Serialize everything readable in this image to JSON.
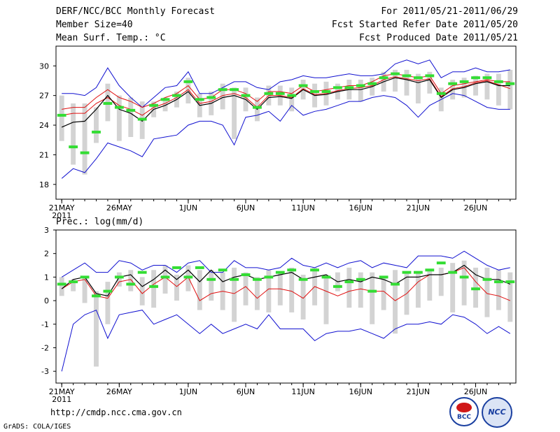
{
  "header": {
    "title": "DERF/NCC/BCC Monthly Forecast",
    "member": "Member Size=40",
    "variable": "Mean Surf. Temp.: °C",
    "period": "For 2011/05/21-2011/06/29",
    "start": "Fcst Started Refer Date 2011/05/20",
    "produced": "Fcst Produced Date 2011/05/21"
  },
  "precip_label": "Prec.: log(mm/d)",
  "footer": {
    "url": "http://cmdp.ncc.cma.gov.cn",
    "credit": "GrADS: COLA/IGES",
    "logo1": "BCC",
    "logo2": "NCC"
  },
  "colors": {
    "range": "#1010d0",
    "mean": "#000000",
    "climo": "#e01010",
    "median": "#33dd33",
    "box": "#d3d3d3"
  },
  "chart_data": [
    {
      "type": "line",
      "title": "Mean Surf. Temp.: °C",
      "ylim": [
        16.5,
        32
      ],
      "yticks": [
        18,
        21,
        24,
        27,
        30
      ],
      "x_tick_labels": [
        "21MAY",
        "26MAY",
        "1JUN",
        "6JUN",
        "11JUN",
        "16JUN",
        "21JUN",
        "26JUN"
      ],
      "x_tick_days": [
        0,
        5,
        11,
        16,
        21,
        26,
        31,
        36
      ],
      "year_label": "2011",
      "days": 40,
      "max": [
        27.2,
        27.2,
        27.0,
        27.8,
        29.8,
        28.0,
        26.8,
        25.8,
        26.8,
        27.8,
        28.0,
        29.4,
        27.2,
        27.2,
        27.8,
        28.4,
        28.4,
        27.8,
        27.6,
        28.4,
        28.6,
        29.0,
        28.8,
        28.8,
        29.0,
        29.2,
        29.0,
        29.0,
        29.2,
        30.2,
        30.6,
        30.2,
        30.6,
        28.8,
        29.4,
        29.4,
        29.8,
        29.4,
        29.4,
        29.6
      ],
      "min": [
        18.6,
        19.6,
        19.2,
        20.6,
        22.2,
        21.8,
        21.4,
        20.8,
        22.6,
        22.8,
        23.0,
        24.0,
        24.4,
        24.4,
        24.0,
        22.0,
        24.8,
        25.0,
        25.4,
        24.4,
        26.0,
        25.0,
        25.4,
        25.6,
        26.0,
        26.4,
        26.4,
        26.8,
        27.0,
        26.8,
        26.0,
        24.8,
        26.0,
        26.6,
        27.2,
        27.0,
        26.4,
        25.8,
        25.6,
        25.6
      ],
      "mean": [
        23.8,
        24.3,
        24.4,
        25.6,
        27.0,
        25.6,
        25.2,
        24.4,
        25.6,
        26.0,
        26.6,
        27.4,
        26.0,
        26.2,
        26.8,
        27.0,
        26.6,
        25.6,
        26.8,
        26.9,
        26.7,
        27.6,
        27.0,
        27.1,
        27.4,
        27.6,
        27.6,
        27.9,
        28.4,
        28.8,
        28.6,
        28.3,
        28.6,
        26.8,
        27.6,
        27.8,
        28.2,
        28.4,
        28.0,
        28.0
      ],
      "climo": [
        25.6,
        25.8,
        25.8,
        26.8,
        27.6,
        26.8,
        26.4,
        25.8,
        26.2,
        26.8,
        27.2,
        28.0,
        26.6,
        26.8,
        27.6,
        27.6,
        27.2,
        26.4,
        27.4,
        27.4,
        27.2,
        28.0,
        27.4,
        27.6,
        27.8,
        28.0,
        28.0,
        28.4,
        29.0,
        29.2,
        29.0,
        28.8,
        29.0,
        27.2,
        28.0,
        28.2,
        28.4,
        28.6,
        28.4,
        28.4
      ],
      "climo2": [
        25.0,
        25.2,
        25.2,
        26.2,
        26.8,
        26.0,
        25.6,
        25.0,
        25.8,
        26.2,
        26.8,
        27.6,
        26.2,
        26.4,
        27.0,
        27.2,
        26.8,
        25.8,
        27.0,
        27.0,
        26.8,
        27.7,
        27.1,
        27.2,
        27.5,
        27.7,
        27.8,
        28.0,
        28.6,
        28.9,
        28.7,
        28.5,
        28.7,
        26.9,
        27.7,
        27.9,
        28.3,
        28.5,
        28.1,
        27.7
      ],
      "box_high": [
        27.0,
        26.2,
        26.2,
        25.8,
        28.2,
        27.0,
        26.8,
        26.4,
        26.4,
        26.8,
        27.4,
        28.8,
        27.2,
        27.4,
        28.2,
        27.8,
        27.8,
        26.8,
        28.0,
        28.0,
        27.8,
        28.6,
        28.2,
        28.4,
        28.2,
        28.6,
        28.6,
        28.8,
        29.4,
        29.6,
        29.6,
        29.2,
        29.4,
        27.8,
        28.6,
        28.8,
        29.0,
        29.2,
        29.2,
        29.6
      ],
      "box_low": [
        22.4,
        20.0,
        19.0,
        22.2,
        24.4,
        22.4,
        22.8,
        22.6,
        24.8,
        25.4,
        25.8,
        26.2,
        24.8,
        25.0,
        25.6,
        22.6,
        25.4,
        24.4,
        26.0,
        26.0,
        25.4,
        26.6,
        25.8,
        26.0,
        26.6,
        26.6,
        26.4,
        27.0,
        27.4,
        27.4,
        27.0,
        26.2,
        27.2,
        25.4,
        26.6,
        26.8,
        27.0,
        26.6,
        26.0,
        25.6
      ],
      "median": [
        25.0,
        21.8,
        21.2,
        23.3,
        26.2,
        25.8,
        25.5,
        24.6,
        26.0,
        26.6,
        27.0,
        28.4,
        26.6,
        26.8,
        27.6,
        27.6,
        27.0,
        25.8,
        27.2,
        27.2,
        27.0,
        28.0,
        27.4,
        27.4,
        27.8,
        27.8,
        28.0,
        28.2,
        28.8,
        29.2,
        29.0,
        28.8,
        29.0,
        27.2,
        28.2,
        28.4,
        28.8,
        28.8,
        28.4,
        28.2
      ]
    },
    {
      "type": "line",
      "title": "Prec.: log(mm/d)",
      "ylim": [
        -3.5,
        3
      ],
      "yticks": [
        -3,
        -2,
        -1,
        0,
        1,
        2,
        3
      ],
      "x_tick_labels": [
        "21MAY",
        "26MAY",
        "1JUN",
        "6JUN",
        "11JUN",
        "16JUN",
        "21JUN",
        "26JUN"
      ],
      "x_tick_days": [
        0,
        5,
        11,
        16,
        21,
        26,
        31,
        36
      ],
      "year_label": "2011",
      "days": 40,
      "max": [
        1.0,
        1.3,
        1.6,
        1.2,
        1.2,
        1.7,
        1.6,
        1.3,
        1.5,
        1.5,
        1.2,
        1.6,
        1.7,
        1.2,
        1.2,
        1.7,
        1.4,
        1.4,
        1.3,
        1.4,
        1.8,
        1.5,
        1.4,
        1.6,
        1.4,
        1.6,
        1.7,
        1.4,
        1.6,
        1.5,
        1.4,
        1.9,
        1.9,
        1.9,
        1.8,
        2.1,
        1.8,
        1.5,
        1.3,
        1.4
      ],
      "min": [
        -3.0,
        -1.0,
        -0.6,
        -0.4,
        -1.6,
        -0.6,
        -0.5,
        -0.4,
        -1.0,
        -0.8,
        -0.6,
        -1.0,
        -1.4,
        -1.0,
        -1.4,
        -1.2,
        -1.0,
        -1.2,
        -0.6,
        -1.2,
        -1.2,
        -1.2,
        -1.7,
        -1.4,
        -1.3,
        -1.3,
        -1.2,
        -1.4,
        -1.6,
        -1.2,
        -1.0,
        -1.0,
        -0.9,
        -1.0,
        -0.6,
        -0.7,
        -1.0,
        -1.4,
        -1.1,
        -1.4
      ],
      "mean": [
        0.5,
        0.9,
        1.0,
        0.3,
        0.2,
        1.0,
        1.1,
        0.6,
        0.9,
        1.3,
        0.9,
        1.3,
        0.8,
        1.3,
        0.8,
        1.0,
        1.1,
        0.9,
        1.0,
        1.1,
        1.2,
        0.9,
        1.0,
        1.1,
        0.8,
        0.9,
        0.8,
        1.0,
        0.9,
        0.7,
        1.0,
        1.0,
        1.1,
        1.1,
        1.2,
        1.5,
        1.1,
        0.9,
        0.9,
        0.7
      ],
      "climo": [
        0.5,
        0.8,
        0.9,
        0.2,
        0.1,
        0.8,
        0.9,
        0.3,
        0.7,
        1.0,
        0.6,
        1.0,
        0.0,
        0.3,
        0.4,
        0.3,
        0.6,
        0.1,
        0.5,
        0.5,
        0.4,
        0.1,
        0.6,
        0.4,
        0.2,
        0.4,
        0.5,
        0.4,
        0.4,
        0.0,
        0.3,
        0.8,
        1.1,
        1.1,
        1.2,
        1.4,
        0.8,
        0.3,
        0.2,
        0.0
      ],
      "box_high": [
        1.0,
        0.9,
        1.0,
        0.4,
        0.8,
        1.2,
        1.3,
        1.0,
        1.3,
        1.5,
        1.1,
        1.5,
        1.3,
        1.3,
        1.2,
        1.4,
        1.2,
        1.0,
        1.3,
        1.2,
        1.4,
        1.1,
        1.4,
        1.1,
        1.2,
        1.4,
        1.2,
        1.2,
        1.0,
        1.3,
        1.2,
        1.2,
        1.3,
        1.4,
        1.6,
        1.7,
        1.4,
        1.4,
        1.3,
        1.2
      ],
      "box_low": [
        0.2,
        0.4,
        -0.1,
        -2.8,
        -1.0,
        0.6,
        0.4,
        -0.2,
        -0.3,
        0.3,
        0.0,
        0.4,
        -0.4,
        0.0,
        -0.4,
        -0.9,
        -0.2,
        -0.4,
        -0.5,
        -0.2,
        -0.5,
        -0.8,
        -0.2,
        -1.0,
        0.4,
        -0.3,
        -0.3,
        -1.0,
        -0.4,
        -1.4,
        -0.6,
        -0.3,
        0.0,
        0.2,
        -0.5,
        -0.2,
        -0.3,
        -0.7,
        -0.4,
        -0.9
      ],
      "median": [
        0.7,
        0.8,
        1.0,
        0.2,
        0.4,
        1.0,
        0.7,
        1.2,
        0.6,
        1.0,
        1.4,
        1.0,
        1.4,
        0.9,
        1.3,
        0.9,
        1.1,
        0.9,
        1.0,
        1.2,
        1.3,
        0.9,
        1.3,
        1.0,
        0.6,
        0.8,
        0.9,
        0.4,
        1.0,
        0.7,
        1.2,
        1.2,
        1.3,
        1.6,
        1.2,
        1.0,
        0.5,
        0.9,
        0.8,
        0.8
      ]
    }
  ]
}
